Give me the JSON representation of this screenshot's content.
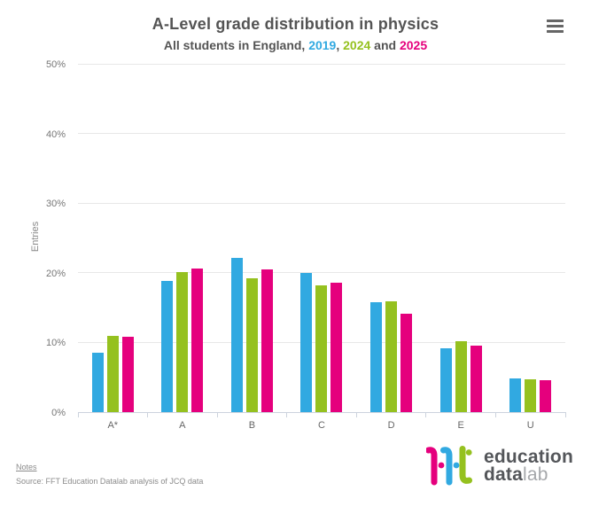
{
  "header": {
    "title": "A-Level grade distribution in physics",
    "subtitle_prefix": "All students in England, ",
    "year_2019": "2019",
    "sep1": ", ",
    "year_2024": "2024",
    "sep2": " and ",
    "year_2025": "2025"
  },
  "colors": {
    "series_2019": "#31a9e1",
    "series_2024": "#95c11f",
    "series_2025": "#e5007d",
    "title_text": "#545454",
    "tick_text": "#777777",
    "gridline": "#e7e7e7",
    "axis_line": "#ccd3dd"
  },
  "chart_data": {
    "type": "bar",
    "title": "A-Level grade distribution in physics",
    "subtitle": "All students in England, 2019, 2024 and 2025",
    "categories": [
      "A*",
      "A",
      "B",
      "C",
      "D",
      "E",
      "U"
    ],
    "series": [
      {
        "name": "2019",
        "color": "#31a9e1",
        "values": [
          8.5,
          18.9,
          22.2,
          20.0,
          15.8,
          9.2,
          4.8
        ]
      },
      {
        "name": "2024",
        "color": "#95c11f",
        "values": [
          11.0,
          20.1,
          19.3,
          18.2,
          15.9,
          10.2,
          4.7
        ]
      },
      {
        "name": "2025",
        "color": "#e5007d",
        "values": [
          10.9,
          20.7,
          20.5,
          18.6,
          14.2,
          9.6,
          4.6
        ]
      }
    ],
    "xlabel": "",
    "ylabel": "Entries",
    "ylim": [
      0,
      50
    ],
    "yticks": [
      "0%",
      "10%",
      "20%",
      "30%",
      "40%",
      "50%"
    ],
    "grid": "horizontal",
    "legend": "none"
  },
  "footer": {
    "notes_label": "Notes",
    "source": "Source: FFT Education Datalab analysis of JCQ data"
  },
  "logo": {
    "brand": "fft",
    "line1": "education",
    "line2_bold": "data",
    "line2_light": "lab"
  }
}
